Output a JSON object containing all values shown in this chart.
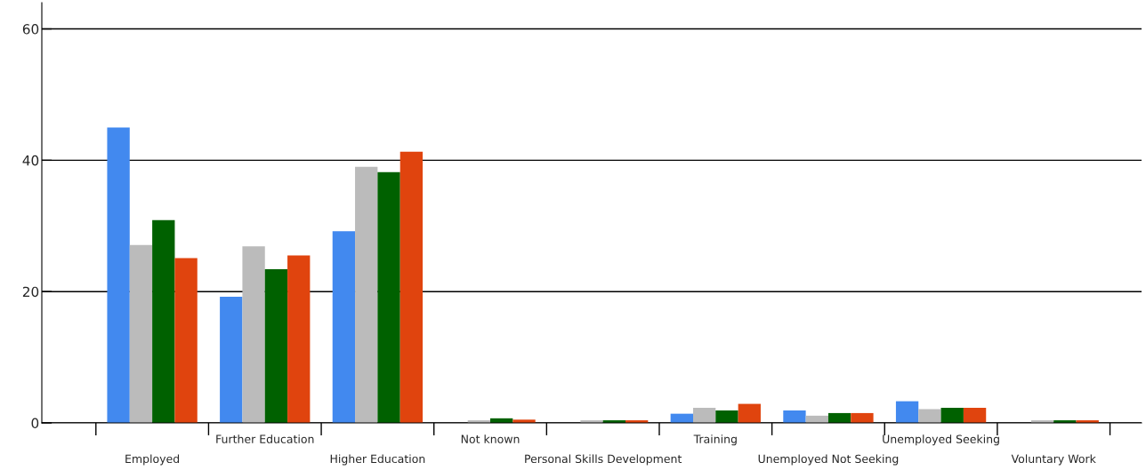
{
  "chart_data": {
    "type": "bar",
    "categories": [
      "Employed",
      "Further Education",
      "Higher Education",
      "Not known",
      "Personal Skills Development",
      "Training",
      "Unemployed Not Seeking",
      "Unemployed Seeking",
      "Voluntary Work"
    ],
    "series": [
      {
        "color": "#4289ef",
        "values": [
          45.0,
          19.2,
          29.2,
          null,
          null,
          1.4,
          1.9,
          3.3,
          null
        ]
      },
      {
        "color": "#bbbbbb",
        "values": [
          27.1,
          26.9,
          39.0,
          0.4,
          0.4,
          2.3,
          1.1,
          2.1,
          0.4
        ]
      },
      {
        "color": "#006100",
        "values": [
          30.9,
          23.4,
          38.2,
          0.7,
          0.4,
          1.9,
          1.5,
          2.3,
          0.4
        ]
      },
      {
        "color": "#e0440e",
        "values": [
          25.1,
          25.5,
          41.3,
          0.5,
          0.4,
          2.9,
          1.5,
          2.3,
          0.4
        ]
      }
    ],
    "ylim": [
      0,
      64
    ],
    "yticks": [
      0,
      20,
      40,
      60
    ],
    "grid": "y",
    "legend": false
  }
}
